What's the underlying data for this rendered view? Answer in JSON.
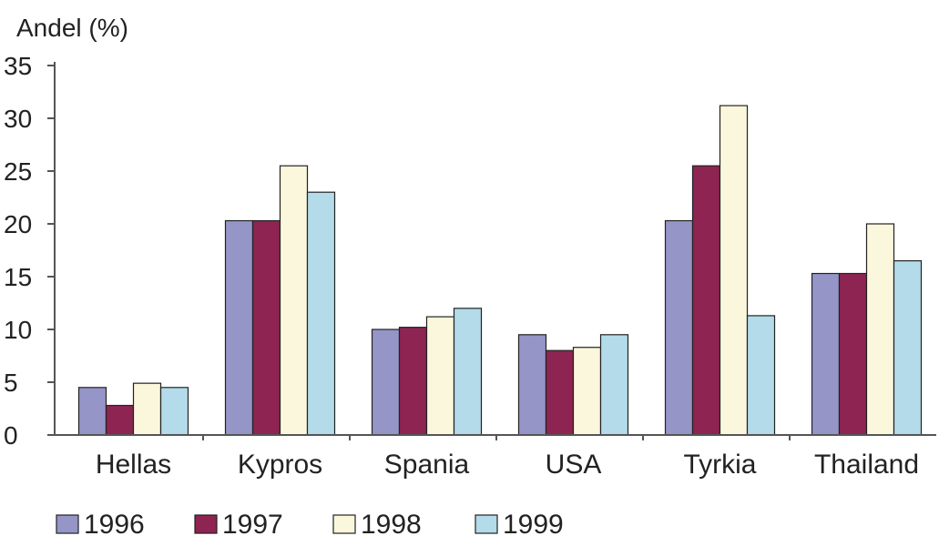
{
  "colors": {
    "1996": "#9595c8",
    "1997": "#8e2452",
    "1998": "#fbf7dc",
    "1999": "#b3dbe9",
    "axis": "#555555",
    "edge": "#222222"
  },
  "chart_data": {
    "type": "bar",
    "title": "",
    "ylabel": "Andel (%)",
    "xlabel": "",
    "ylim": [
      0,
      35
    ],
    "yticks": [
      "0",
      "5",
      "10",
      "15",
      "20",
      "25",
      "30",
      "35"
    ],
    "grid": false,
    "legend_position": "bottom-left",
    "categories": [
      "Hellas",
      "Kypros",
      "Spania",
      "USA",
      "Tyrkia",
      "Thailand"
    ],
    "series": [
      {
        "name": "1996",
        "values": [
          4.5,
          20.3,
          10.0,
          9.5,
          20.3,
          15.3
        ]
      },
      {
        "name": "1997",
        "values": [
          2.8,
          20.3,
          10.2,
          8.0,
          25.5,
          15.3
        ]
      },
      {
        "name": "1998",
        "values": [
          4.9,
          25.5,
          11.2,
          8.3,
          31.2,
          20.0
        ]
      },
      {
        "name": "1999",
        "values": [
          4.5,
          23.0,
          12.0,
          9.5,
          11.3,
          16.5
        ]
      }
    ]
  }
}
